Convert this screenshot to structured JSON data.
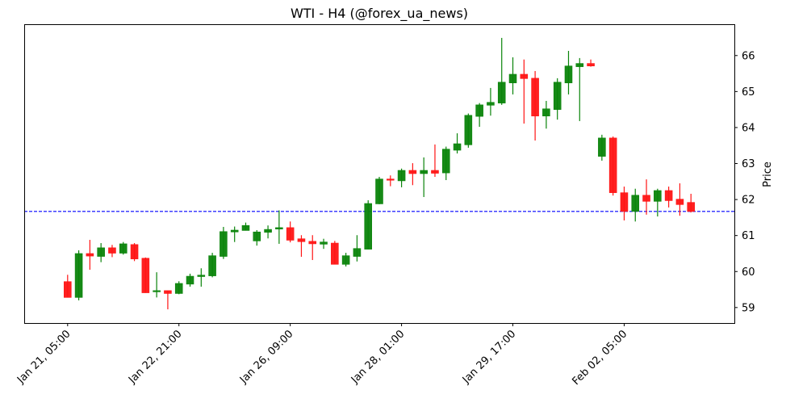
{
  "chart_data": {
    "type": "candlestick",
    "title": "WTI - H4 (@forex_ua_news)",
    "xlabel": "",
    "ylabel": "Price",
    "ylim": [
      58.57,
      66.87
    ],
    "xlim": [
      -3.9,
      59.9
    ],
    "grid": false,
    "y_ticks": [
      59,
      60,
      61,
      62,
      63,
      64,
      65,
      66
    ],
    "x_ticks": [
      {
        "index": 0,
        "label": "Jan 21, 05:00"
      },
      {
        "index": 10,
        "label": "Jan 22, 21:00"
      },
      {
        "index": 20,
        "label": "Jan 26, 09:00"
      },
      {
        "index": 30,
        "label": "Jan 28, 01:00"
      },
      {
        "index": 40,
        "label": "Jan 29, 17:00"
      },
      {
        "index": 50,
        "label": "Feb 02, 05:00"
      }
    ],
    "reference_line": {
      "value": 61.67,
      "color": "#0000ff",
      "style": "dashed"
    },
    "colors": {
      "up": "#0a840a",
      "down": "#ff1414"
    },
    "ohlc": [
      [
        59.72,
        59.91,
        59.28,
        59.28
      ],
      [
        59.28,
        60.59,
        59.2,
        60.5
      ],
      [
        60.5,
        60.88,
        60.05,
        60.43
      ],
      [
        60.42,
        60.79,
        60.26,
        60.66
      ],
      [
        60.66,
        60.74,
        60.4,
        60.51
      ],
      [
        60.51,
        60.82,
        60.47,
        60.77
      ],
      [
        60.75,
        60.79,
        60.29,
        60.35
      ],
      [
        60.37,
        60.39,
        59.41,
        59.41
      ],
      [
        59.45,
        59.98,
        59.28,
        59.47
      ],
      [
        59.47,
        59.47,
        58.95,
        59.39
      ],
      [
        59.39,
        59.73,
        59.37,
        59.67
      ],
      [
        59.65,
        59.94,
        59.58,
        59.87
      ],
      [
        59.86,
        60.09,
        59.58,
        59.9
      ],
      [
        59.88,
        60.52,
        59.84,
        60.44
      ],
      [
        60.42,
        61.24,
        60.35,
        61.11
      ],
      [
        61.1,
        61.25,
        60.82,
        61.15
      ],
      [
        61.14,
        61.36,
        61.14,
        61.28
      ],
      [
        60.85,
        61.15,
        60.72,
        61.1
      ],
      [
        61.09,
        61.28,
        60.92,
        61.17
      ],
      [
        61.18,
        61.7,
        60.77,
        61.22
      ],
      [
        61.22,
        61.39,
        60.81,
        60.87
      ],
      [
        60.91,
        61.01,
        60.41,
        60.83
      ],
      [
        60.84,
        61.01,
        60.32,
        60.77
      ],
      [
        60.76,
        60.91,
        60.63,
        60.82
      ],
      [
        60.79,
        60.85,
        60.2,
        60.2
      ],
      [
        60.2,
        60.52,
        60.14,
        60.44
      ],
      [
        60.42,
        61.01,
        60.28,
        60.64
      ],
      [
        60.62,
        61.98,
        60.62,
        61.89
      ],
      [
        61.88,
        62.63,
        61.87,
        62.57
      ],
      [
        62.57,
        62.67,
        62.37,
        62.55
      ],
      [
        62.52,
        62.86,
        62.34,
        62.81
      ],
      [
        62.81,
        63.01,
        62.4,
        62.72
      ],
      [
        62.72,
        63.17,
        62.07,
        62.81
      ],
      [
        62.81,
        63.53,
        62.63,
        62.73
      ],
      [
        62.74,
        63.47,
        62.54,
        63.4
      ],
      [
        63.37,
        63.84,
        63.28,
        63.55
      ],
      [
        63.52,
        64.39,
        63.44,
        64.34
      ],
      [
        64.31,
        64.68,
        64.02,
        64.63
      ],
      [
        64.62,
        65.1,
        64.33,
        64.7
      ],
      [
        64.68,
        66.49,
        64.63,
        65.26
      ],
      [
        65.24,
        65.95,
        64.92,
        65.48
      ],
      [
        65.48,
        65.89,
        64.11,
        65.36
      ],
      [
        65.37,
        65.57,
        63.64,
        64.32
      ],
      [
        64.32,
        64.74,
        63.97,
        64.52
      ],
      [
        64.5,
        65.37,
        64.22,
        65.26
      ],
      [
        65.24,
        66.13,
        64.92,
        65.71
      ],
      [
        65.69,
        65.93,
        64.18,
        65.78
      ],
      [
        65.78,
        65.89,
        65.69,
        65.71
      ],
      [
        63.2,
        63.8,
        63.08,
        63.71
      ],
      [
        63.71,
        63.75,
        62.11,
        62.19
      ],
      [
        62.19,
        62.36,
        61.42,
        61.67
      ],
      [
        61.67,
        62.3,
        61.39,
        62.12
      ],
      [
        62.12,
        62.56,
        61.58,
        61.95
      ],
      [
        61.95,
        62.3,
        61.53,
        62.25
      ],
      [
        62.25,
        62.36,
        61.78,
        61.97
      ],
      [
        62.01,
        62.45,
        61.55,
        61.86
      ],
      [
        61.92,
        62.16,
        61.64,
        61.67
      ]
    ]
  }
}
